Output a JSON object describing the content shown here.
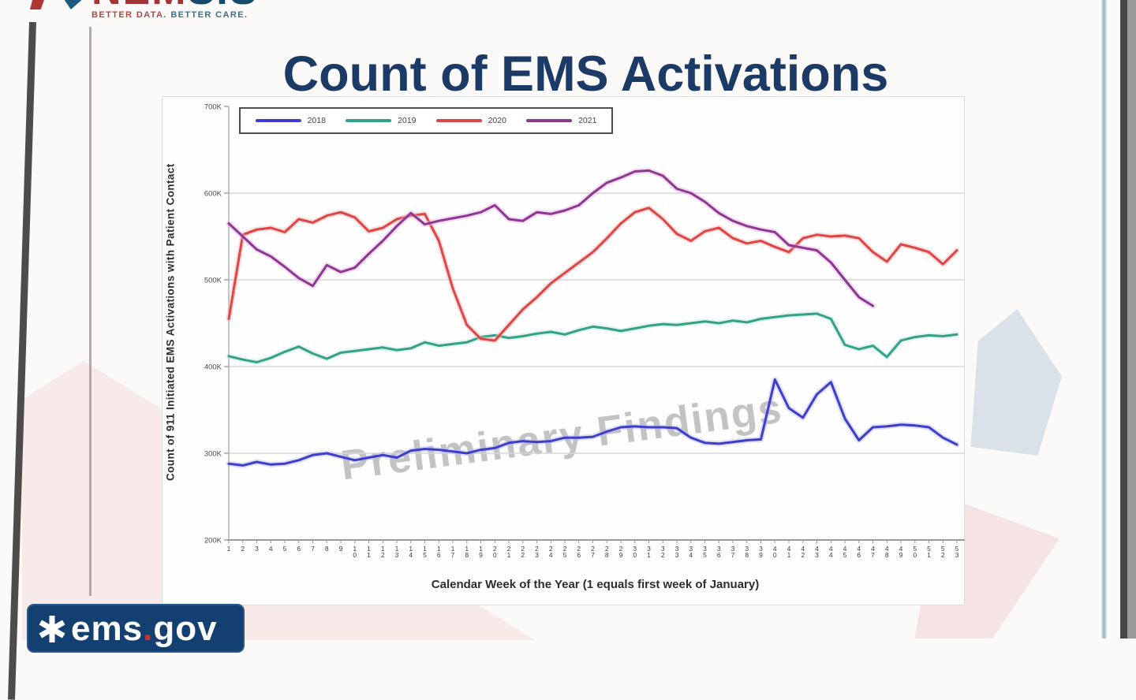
{
  "slide": {
    "nemsis_logo": {
      "text": "NEMSIS",
      "text_left": "NEM",
      "text_right": "SIS",
      "tagline_data": "BETTER DATA.",
      "tagline_care": "BETTER CARE."
    },
    "title": "Count of EMS Activations",
    "watermark": "Preliminary Findings",
    "emsgov_logo": {
      "ems": "ems",
      "dot": ".",
      "gov": "gov"
    }
  },
  "chart_data": {
    "type": "line",
    "title": "Count of EMS Activations",
    "xlabel": "Calendar Week of the Year (1 equals first week of January)",
    "ylabel": "Count of 911 Initiated EMS Activations with Patient Contact",
    "value_unit": "thousands of 911-initiated EMS activations (axis labels in K)",
    "ylim_thousands": [
      200,
      700
    ],
    "y_tick_values": [
      700,
      600,
      500,
      400,
      300,
      200
    ],
    "y_tick_labels": [
      "700K",
      "600K",
      "500K",
      "400K",
      "300K",
      "200K"
    ],
    "grid": "horizontal gridlines at 100K intervals",
    "legend_position": "top-left",
    "annotations": [
      "Preliminary Findings"
    ],
    "x_ticks": [
      1,
      2,
      3,
      4,
      5,
      6,
      7,
      8,
      9,
      10,
      11,
      12,
      13,
      14,
      15,
      16,
      17,
      18,
      19,
      20,
      21,
      22,
      23,
      24,
      25,
      26,
      27,
      28,
      29,
      30,
      31,
      32,
      33,
      34,
      35,
      36,
      37,
      38,
      39,
      40,
      41,
      42,
      43,
      44,
      45,
      46,
      47,
      48,
      49,
      50,
      51,
      52,
      53
    ],
    "series": [
      {
        "name": "2018",
        "color": "#3e3ecb",
        "glow": "#b9b9ef",
        "values": [
          288,
          286,
          290,
          287,
          288,
          292,
          298,
          300,
          296,
          292,
          295,
          298,
          295,
          303,
          305,
          304,
          302,
          300,
          304,
          306,
          312,
          314,
          313,
          314,
          318,
          318,
          319,
          325,
          330,
          331,
          330,
          330,
          329,
          318,
          312,
          311,
          313,
          315,
          316,
          385,
          352,
          341,
          368,
          382,
          340,
          315,
          330,
          331,
          333,
          332,
          330,
          318,
          310
        ]
      },
      {
        "name": "2019",
        "color": "#35a188",
        "glow": "#bde7da",
        "values": [
          412,
          408,
          405,
          410,
          417,
          423,
          415,
          409,
          416,
          418,
          420,
          422,
          419,
          421,
          428,
          424,
          426,
          428,
          434,
          436,
          433,
          435,
          438,
          440,
          437,
          442,
          446,
          444,
          441,
          444,
          447,
          449,
          448,
          450,
          452,
          450,
          453,
          451,
          455,
          457,
          459,
          460,
          461,
          455,
          425,
          420,
          424,
          411,
          430,
          434,
          436,
          435,
          437
        ]
      },
      {
        "name": "2020",
        "color": "#e04545",
        "glow": "#f5b8b8",
        "values": [
          455,
          552,
          558,
          560,
          555,
          570,
          566,
          574,
          578,
          572,
          556,
          560,
          570,
          574,
          576,
          545,
          490,
          448,
          432,
          430,
          448,
          466,
          480,
          496,
          508,
          520,
          532,
          548,
          565,
          578,
          583,
          570,
          553,
          545,
          556,
          560,
          548,
          542,
          545,
          538,
          532,
          548,
          552,
          550,
          551,
          548,
          532,
          521,
          541,
          537,
          532,
          518,
          534
        ]
      },
      {
        "name": "2021",
        "color": "#8b3a8f",
        "glow": "#eaaae4",
        "values": [
          565,
          550,
          535,
          527,
          515,
          502,
          493,
          517,
          509,
          514,
          530,
          545,
          562,
          577,
          564,
          568,
          571,
          574,
          578,
          586,
          570,
          568,
          578,
          576,
          580,
          586,
          600,
          612,
          618,
          625,
          626,
          620,
          605,
          600,
          590,
          577,
          568,
          562,
          558,
          555,
          540,
          537,
          534,
          520,
          500,
          480,
          470
        ]
      }
    ]
  }
}
